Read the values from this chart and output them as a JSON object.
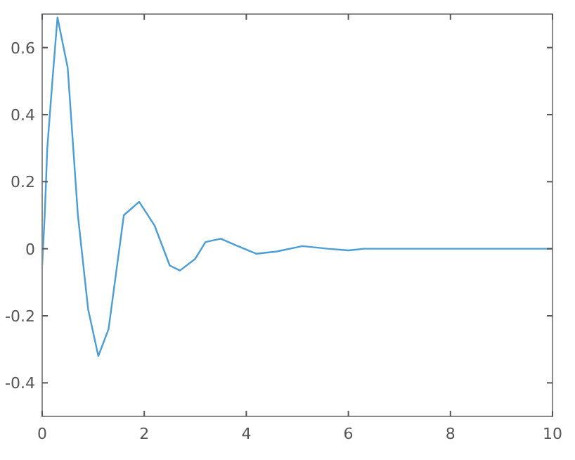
{
  "chart_data": {
    "type": "line",
    "x": [
      0,
      0.05,
      0.1,
      0.2,
      0.3,
      0.5,
      0.7,
      0.9,
      1.1,
      1.3,
      1.6,
      1.9,
      2.2,
      2.5,
      2.7,
      3.0,
      3.2,
      3.5,
      3.8,
      4.2,
      4.6,
      5.1,
      5.6,
      6.0,
      6.3,
      7,
      8,
      9,
      10
    ],
    "series": [
      {
        "color": "#4a9ed6",
        "values": [
          -0.05,
          0.1,
          0.3,
          0.5,
          0.69,
          0.54,
          0.1,
          -0.18,
          -0.32,
          -0.24,
          0.1,
          0.14,
          0.07,
          -0.05,
          -0.065,
          -0.03,
          0.02,
          0.03,
          0.01,
          -0.015,
          -0.008,
          0.008,
          0,
          -0.005,
          0,
          0,
          0,
          0,
          0
        ]
      }
    ],
    "xlim": [
      0,
      10
    ],
    "xticks": [
      0,
      2,
      4,
      6,
      8,
      10
    ],
    "ylim": [
      -0.5,
      0.7
    ],
    "yticks": [
      -0.4,
      -0.2,
      0,
      0.2,
      0.4,
      0.6
    ],
    "marker": "none",
    "line_style": "solid"
  }
}
